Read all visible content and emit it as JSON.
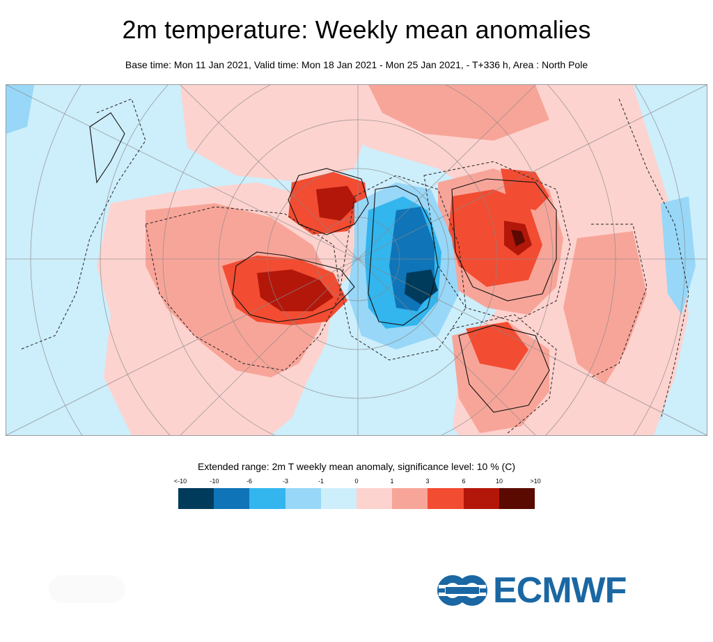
{
  "header": {
    "title": "2m temperature: Weekly mean anomalies",
    "subtitle": "Base time: Mon 11 Jan 2021, Valid time: Mon 18 Jan 2021 - Mon 25 Jan 2021, - T+336 h, Area : North Pole"
  },
  "map": {
    "projection": "north-polar-stereographic",
    "area": "North Pole",
    "colors": {
      "strong_cold": "#003b5c",
      "cold": "#0f74b8",
      "moderate_cold": "#33b5ee",
      "mild_cold": "#98d7f7",
      "slight_cold": "#cdeefb",
      "slight_warm": "#fdd3cf",
      "mild_warm": "#f8a599",
      "moderate_warm": "#f24c32",
      "warm": "#b3170a",
      "strong_warm": "#5a0a00"
    }
  },
  "legend": {
    "title": "Extended range: 2m T weekly mean anomaly, significance level: 10 % (C)",
    "ticks": [
      "<-10",
      "-10",
      "-6",
      "-3",
      "-1",
      "0",
      "1",
      "3",
      "6",
      "10",
      ">10"
    ],
    "colors": [
      "#003b5c",
      "#0f74b8",
      "#33b5ee",
      "#98d7f7",
      "#cdeefb",
      "#fdd3cf",
      "#f8a599",
      "#f24c32",
      "#b3170a",
      "#5a0a00"
    ]
  },
  "logo": {
    "text": "ECMWF",
    "color": "#1a67a3"
  }
}
